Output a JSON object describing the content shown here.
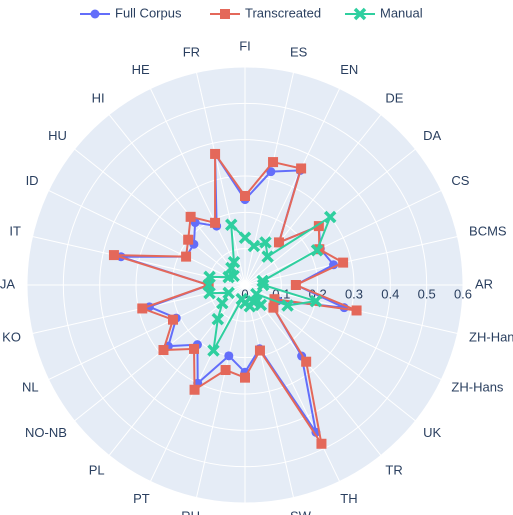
{
  "chart_data": {
    "type": "polar_line",
    "categories": [
      "FI",
      "ES",
      "EN",
      "DE",
      "DA",
      "CS",
      "BCMS",
      "AR",
      "ZH-Hant",
      "ZH-Hans",
      "UK",
      "TR",
      "TH",
      "SW",
      "SV",
      "RU",
      "PT",
      "PL",
      "NO-NB",
      "NL",
      "KO",
      "JA",
      "IT",
      "ID",
      "HU",
      "HI",
      "HE",
      "FR"
    ],
    "series": [
      {
        "name": "Full Corpus",
        "color": "#636efa",
        "marker": "circle",
        "values": [
          0.235,
          0.32,
          0.35,
          0.15,
          0.26,
          0.23,
          0.25,
          0.14,
          0.28,
          0.1,
          0.1,
          0.25,
          0.45,
          0.18,
          0.24,
          0.2,
          0.3,
          0.21,
          0.27,
          0.21,
          0.27,
          0.1,
          0.35,
          0.18,
          0.18,
          0.22,
          0.18,
          0.37
        ]
      },
      {
        "name": "Transcreated",
        "color": "#e4685a",
        "marker": "square",
        "values": [
          0.245,
          0.347,
          0.356,
          0.15,
          0.26,
          0.227,
          0.277,
          0.14,
          0.315,
          0.09,
          0.1,
          0.27,
          0.485,
          0.185,
          0.255,
          0.24,
          0.32,
          0.225,
          0.287,
          0.22,
          0.29,
          0.1,
          0.37,
          0.18,
          0.2,
          0.24,
          0.19,
          0.37
        ]
      },
      {
        "name": "Manual",
        "color": "#2fcf9f",
        "marker": "x",
        "values": [
          0.13,
          0.11,
          0.13,
          0.1,
          0.3,
          0.22,
          0.05,
          0.05,
          0.2,
          0.13,
          0.04,
          0.07,
          0.05,
          0.06,
          0.05,
          0.04,
          0.2,
          0.12,
          0.08,
          0.05,
          0.1,
          0.1,
          0.1,
          0.05,
          0.04,
          0.06,
          0.07,
          0.17
        ]
      }
    ],
    "rlim": [
      0,
      0.6
    ],
    "rticks": [
      0,
      0.1,
      0.2,
      0.3,
      0.4,
      0.5,
      0.6
    ],
    "grid": true,
    "legend": "top"
  }
}
